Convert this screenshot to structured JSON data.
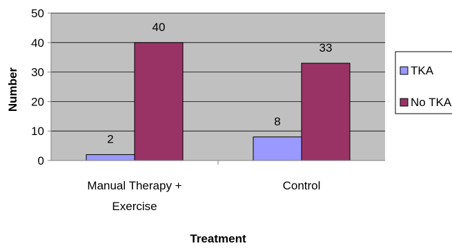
{
  "chart_data": {
    "type": "bar",
    "categories": [
      [
        "Manual Therapy +",
        "Exercise"
      ],
      [
        "Control"
      ]
    ],
    "series": [
      {
        "name": "TKA",
        "values": [
          2,
          8
        ],
        "color": "#9999ff"
      },
      {
        "name": "No TKA",
        "values": [
          40,
          33
        ],
        "color": "#993366"
      }
    ],
    "xlabel": "Treatment",
    "ylabel": "Number",
    "ylim": [
      0,
      50
    ],
    "yticks": [
      0,
      10,
      20,
      30,
      40,
      50
    ],
    "grid": true,
    "plot_background": "#c0c0c0",
    "legend_position": "right"
  }
}
